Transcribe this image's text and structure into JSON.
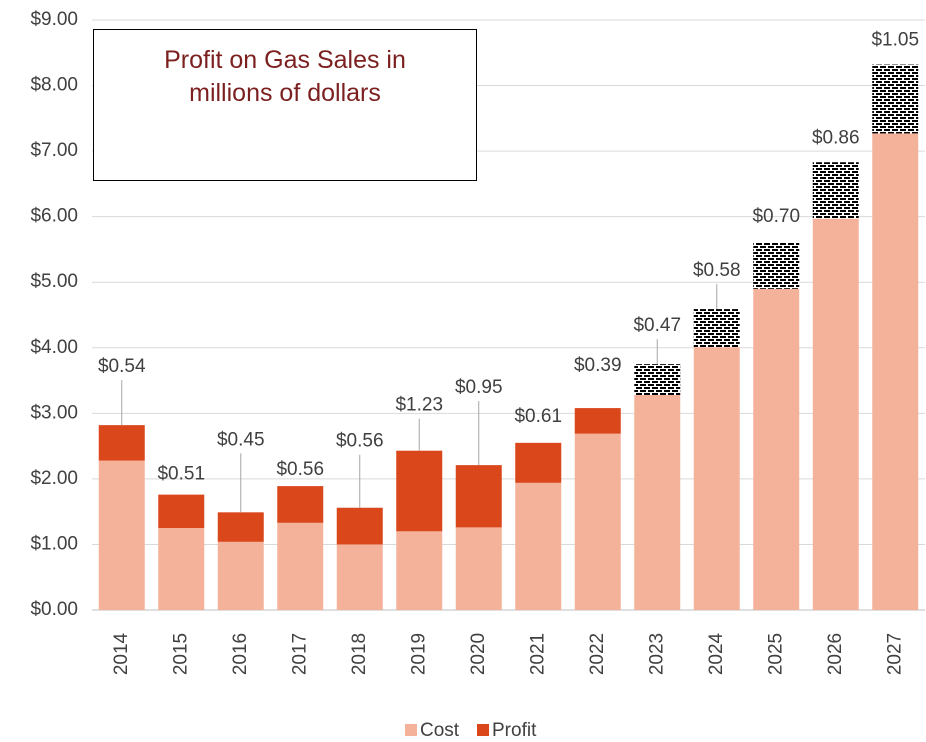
{
  "chart_data": {
    "type": "stacked_bar",
    "title": "Profit on Gas Sales in millions of dollars",
    "categories": [
      "2014",
      "2015",
      "2016",
      "2017",
      "2018",
      "2019",
      "2020",
      "2021",
      "2022",
      "2023",
      "2024",
      "2025",
      "2026",
      "2027"
    ],
    "series": [
      {
        "name": "Cost",
        "color": "#f4b29a",
        "values": [
          2.28,
          1.25,
          1.04,
          1.33,
          1.0,
          1.2,
          1.26,
          1.94,
          2.69,
          3.28,
          4.01,
          4.9,
          5.97,
          7.27
        ]
      },
      {
        "name": "Profit",
        "color": "#d9471b",
        "values": [
          0.54,
          0.51,
          0.45,
          0.56,
          0.56,
          1.23,
          0.95,
          0.61,
          0.39,
          0.47,
          0.58,
          0.7,
          0.86,
          1.05
        ],
        "value_labels": [
          "$0.54",
          "$0.51",
          "$0.45",
          "$0.56",
          "$0.56",
          "$1.23",
          "$0.95",
          "$0.61",
          "$0.39",
          "$0.47",
          "$0.58",
          "$0.70",
          "$0.86",
          "$1.05"
        ],
        "hatched": [
          false,
          false,
          false,
          false,
          false,
          false,
          false,
          false,
          false,
          true,
          true,
          true,
          true,
          true
        ]
      }
    ],
    "ylim": [
      0,
      9
    ],
    "yticks": [
      {
        "value": 0,
        "label": "$0.00"
      },
      {
        "value": 1,
        "label": "$1.00"
      },
      {
        "value": 2,
        "label": "$2.00"
      },
      {
        "value": 3,
        "label": "$3.00"
      },
      {
        "value": 4,
        "label": "$4.00"
      },
      {
        "value": 5,
        "label": "$5.00"
      },
      {
        "value": 6,
        "label": "$6.00"
      },
      {
        "value": 7,
        "label": "$7.00"
      },
      {
        "value": 8,
        "label": "$8.00"
      },
      {
        "value": 9,
        "label": "$9.00"
      }
    ],
    "grid": true,
    "legend": "bottom"
  }
}
